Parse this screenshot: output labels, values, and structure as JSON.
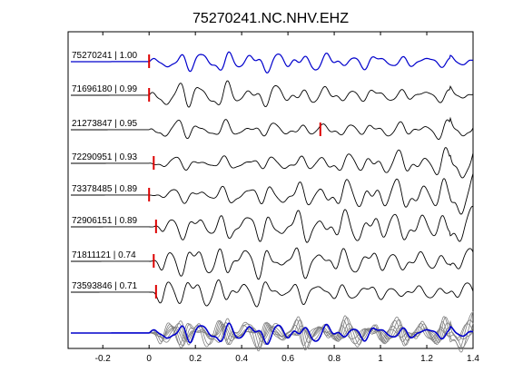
{
  "chart_data": {
    "type": "line",
    "title": "75270241.NC.NHV.EHZ",
    "xlabel": "",
    "ylabel": "",
    "xlim": [
      -0.35,
      1.4
    ],
    "xticks": [
      -0.2,
      0,
      0.2,
      0.4,
      0.6,
      0.8,
      1,
      1.2,
      1.4
    ],
    "xtick_labels": [
      "-0.2",
      "0",
      "0.2",
      "0.4",
      "0.6",
      "0.8",
      "1",
      "1.2",
      "1.4"
    ],
    "grid": false,
    "legend": "none",
    "colors": {
      "reference": "#0000cc",
      "trace": "#000000",
      "stack": "#808080",
      "pick": "#dd0000"
    },
    "series": [
      {
        "label": "75270241 | 1.00",
        "pick_time": 0.0,
        "reference": true
      },
      {
        "label": "71696180 | 0.99",
        "pick_time": 0.0
      },
      {
        "label": "21273847 | 0.95",
        "pick_time": 0.74
      },
      {
        "label": "72290951 | 0.93",
        "pick_time": 0.02
      },
      {
        "label": "73378485 | 0.89",
        "pick_time": 0.0
      },
      {
        "label": "72906151 | 0.89",
        "pick_time": 0.03
      },
      {
        "label": "71811121 | 0.74",
        "pick_time": 0.02
      },
      {
        "label": "73593846 | 0.71",
        "pick_time": 0.03
      }
    ],
    "stack_row": {
      "label": "",
      "overlay": true
    }
  }
}
